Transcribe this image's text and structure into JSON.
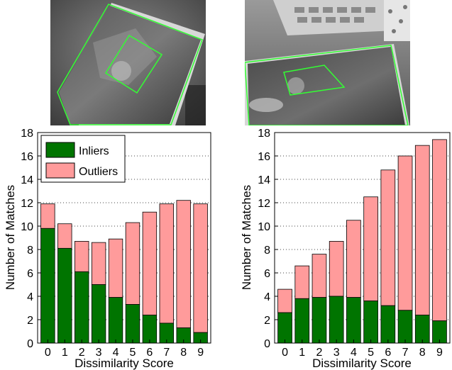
{
  "colors": {
    "inliers": "#007400",
    "outliers": "#ff9b9b",
    "homography_box": "#33ff33",
    "grid": "#444444"
  },
  "photos": [
    {
      "subject": "book cover on a table, camera view with detected homography boxes"
    },
    {
      "subject": "book cover near keyboard and mug, camera view with detected homography boxes"
    }
  ],
  "chart_data": [
    {
      "type": "bar",
      "stacked": true,
      "categories": [
        "0",
        "1",
        "2",
        "3",
        "4",
        "5",
        "6",
        "7",
        "8",
        "9"
      ],
      "series": [
        {
          "name": "Inliers",
          "values": [
            9.8,
            8.1,
            6.1,
            5.0,
            3.9,
            3.3,
            2.4,
            1.7,
            1.3,
            0.9
          ]
        },
        {
          "name": "Outliers",
          "values": [
            2.1,
            2.1,
            2.6,
            3.6,
            5.0,
            7.0,
            8.8,
            10.2,
            10.9,
            11.0
          ]
        }
      ],
      "xlabel": "Dissimilarity Score",
      "ylabel": "Number of Matches",
      "ylim": [
        0,
        18
      ],
      "yticks": [
        0,
        2,
        4,
        6,
        8,
        10,
        12,
        14,
        16,
        18
      ],
      "grid": "horizontal dotted",
      "legend": "top-left"
    },
    {
      "type": "bar",
      "stacked": true,
      "categories": [
        "0",
        "1",
        "2",
        "3",
        "4",
        "5",
        "6",
        "7",
        "8",
        "9"
      ],
      "series": [
        {
          "name": "Inliers",
          "values": [
            2.6,
            3.8,
            3.9,
            4.0,
            3.9,
            3.6,
            3.2,
            2.8,
            2.4,
            1.9
          ]
        },
        {
          "name": "Outliers",
          "values": [
            2.0,
            2.8,
            3.7,
            4.7,
            6.6,
            8.9,
            11.6,
            13.2,
            14.5,
            15.5
          ]
        }
      ],
      "xlabel": "Dissimilarity Score",
      "ylabel": "Number of Matches",
      "ylim": [
        0,
        18
      ],
      "yticks": [
        0,
        2,
        4,
        6,
        8,
        10,
        12,
        14,
        16,
        18
      ],
      "grid": "horizontal dotted",
      "legend": "none"
    }
  ]
}
